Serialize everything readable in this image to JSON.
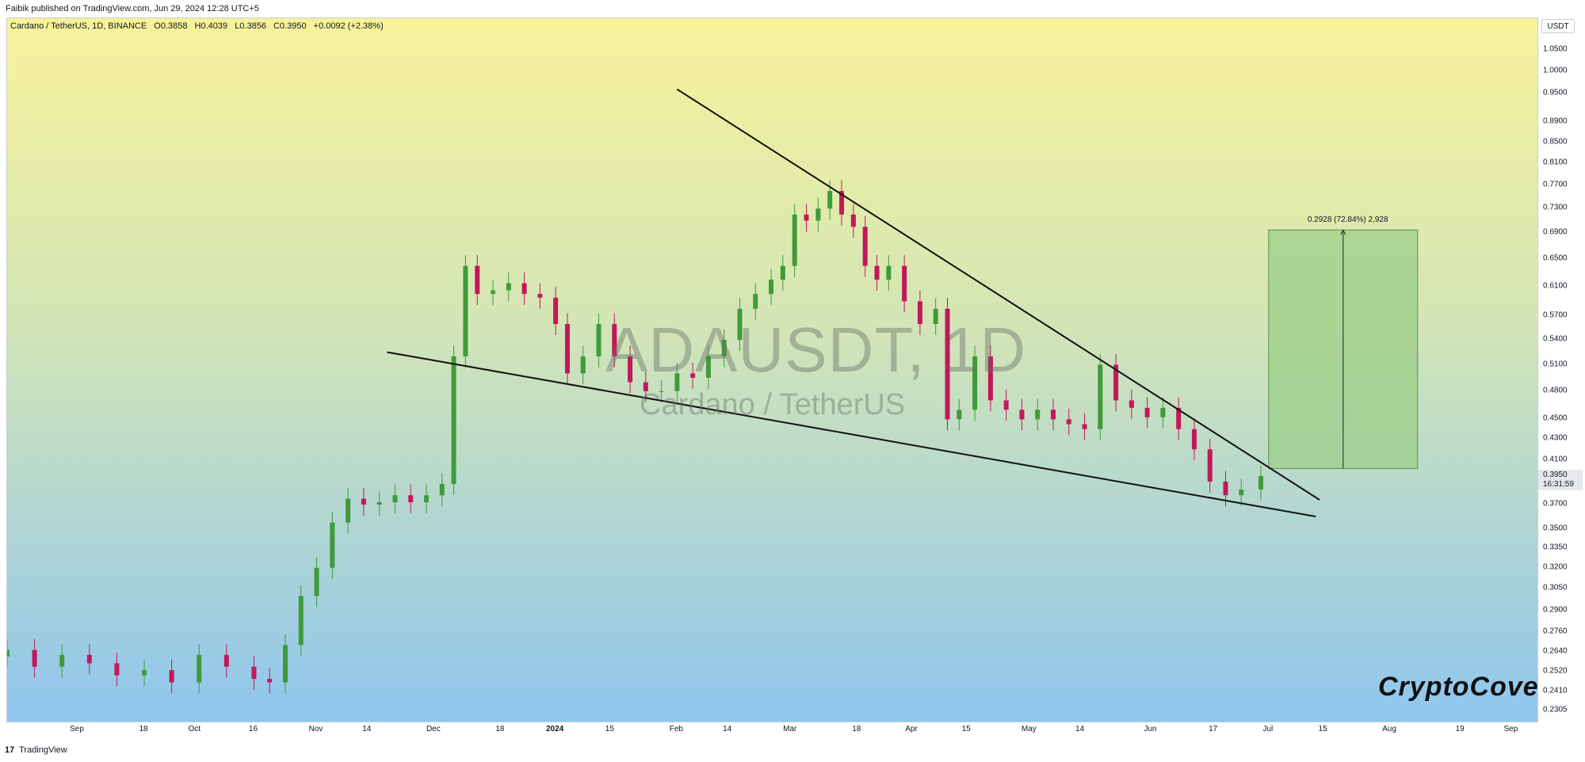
{
  "header": {
    "publisher_line": "Faibik published on TradingView.com, Jun 29, 2024 12:28 UTC+5"
  },
  "legend": {
    "symbol": "Cardano / TetherUS, 1D, BINANCE",
    "open": "O0.3858",
    "high": "H0.4039",
    "low": "L0.3856",
    "close": "C0.3950",
    "change": "+0.0092 (+2.38%)"
  },
  "watermark": {
    "title": "ADAUSDT, 1D",
    "subtitle": "Cardano / TetherUS"
  },
  "brand": "CryptoCove",
  "footer": {
    "logo": "17",
    "text": "TradingView"
  },
  "price_axis": {
    "currency": "USDT",
    "last_price": "0.3950",
    "countdown": "16:31:59",
    "tick_labels": [
      "1.0500",
      "1.0000",
      "0.9500",
      "0.8900",
      "0.8500",
      "0.8100",
      "0.7700",
      "0.7300",
      "0.6900",
      "0.6500",
      "0.6100",
      "0.5700",
      "0.5400",
      "0.5100",
      "0.4800",
      "0.4500",
      "0.4300",
      "0.4100",
      "0.3700",
      "0.3500",
      "0.3350",
      "0.3200",
      "0.3050",
      "0.2900",
      "0.2760",
      "0.2640",
      "0.2520",
      "0.2410",
      "0.2305"
    ]
  },
  "time_axis": {
    "labels": [
      {
        "text": "Sep",
        "date": "2023-09-01"
      },
      {
        "text": "18",
        "date": "2023-09-18"
      },
      {
        "text": "Oct",
        "date": "2023-10-01"
      },
      {
        "text": "16",
        "date": "2023-10-16"
      },
      {
        "text": "Nov",
        "date": "2023-11-01"
      },
      {
        "text": "14",
        "date": "2023-11-14"
      },
      {
        "text": "Dec",
        "date": "2023-12-01"
      },
      {
        "text": "18",
        "date": "2023-12-18"
      },
      {
        "text": "2024",
        "date": "2024-01-01",
        "bold": true
      },
      {
        "text": "15",
        "date": "2024-01-15"
      },
      {
        "text": "Feb",
        "date": "2024-02-01"
      },
      {
        "text": "14",
        "date": "2024-02-14"
      },
      {
        "text": "Mar",
        "date": "2024-03-01"
      },
      {
        "text": "18",
        "date": "2024-03-18"
      },
      {
        "text": "Apr",
        "date": "2024-04-01"
      },
      {
        "text": "15",
        "date": "2024-04-15"
      },
      {
        "text": "May",
        "date": "2024-05-01"
      },
      {
        "text": "14",
        "date": "2024-05-14"
      },
      {
        "text": "Jun",
        "date": "2024-06-01"
      },
      {
        "text": "17",
        "date": "2024-06-17"
      },
      {
        "text": "Jul",
        "date": "2024-07-01"
      },
      {
        "text": "15",
        "date": "2024-07-15"
      },
      {
        "text": "Aug",
        "date": "2024-08-01"
      },
      {
        "text": "19",
        "date": "2024-08-19"
      },
      {
        "text": "Sep",
        "date": "2024-09-01"
      }
    ]
  },
  "colors": {
    "bg_top": "#f7f29a",
    "bg_bottom": "#8fc6ee",
    "candle_up": "#3f9b3a",
    "candle_down": "#c2185b",
    "trendline": "#111111",
    "target_fill": "#9ccf8a"
  },
  "chart_data": {
    "type": "candlestick",
    "symbol": "ADAUSDT",
    "interval": "1D",
    "exchange": "BINANCE",
    "scale": "log",
    "ylim": [
      0.224,
      1.13
    ],
    "xlim": [
      "2023-08-14",
      "2024-09-08"
    ],
    "grid": false,
    "series": [
      {
        "name": "",
        "x": [
          "2023-08-14",
          "2023-08-21",
          "2023-08-28",
          "2023-09-04",
          "2023-09-11",
          "2023-09-18",
          "2023-09-25",
          "2023-10-02",
          "2023-10-09",
          "2023-10-16",
          "2023-10-20",
          "2023-10-24",
          "2023-10-28",
          "2023-11-01",
          "2023-11-05",
          "2023-11-09",
          "2023-11-13",
          "2023-11-17",
          "2023-11-21",
          "2023-11-25",
          "2023-11-29",
          "2023-12-03",
          "2023-12-06",
          "2023-12-09",
          "2023-12-12",
          "2023-12-16",
          "2023-12-20",
          "2023-12-24",
          "2023-12-28",
          "2024-01-01",
          "2024-01-04",
          "2024-01-08",
          "2024-01-12",
          "2024-01-16",
          "2024-01-20",
          "2024-01-24",
          "2024-01-28",
          "2024-02-01",
          "2024-02-05",
          "2024-02-09",
          "2024-02-13",
          "2024-02-17",
          "2024-02-21",
          "2024-02-25",
          "2024-02-28",
          "2024-03-02",
          "2024-03-05",
          "2024-03-08",
          "2024-03-11",
          "2024-03-14",
          "2024-03-17",
          "2024-03-20",
          "2024-03-23",
          "2024-03-26",
          "2024-03-30",
          "2024-04-03",
          "2024-04-07",
          "2024-04-10",
          "2024-04-13",
          "2024-04-17",
          "2024-04-21",
          "2024-04-25",
          "2024-04-29",
          "2024-05-03",
          "2024-05-07",
          "2024-05-11",
          "2024-05-15",
          "2024-05-19",
          "2024-05-23",
          "2024-05-27",
          "2024-05-31",
          "2024-06-04",
          "2024-06-08",
          "2024-06-12",
          "2024-06-16",
          "2024-06-20",
          "2024-06-24",
          "2024-06-29"
        ],
        "close": [
          0.265,
          0.255,
          0.262,
          0.257,
          0.25,
          0.253,
          0.246,
          0.262,
          0.255,
          0.248,
          0.246,
          0.268,
          0.3,
          0.32,
          0.355,
          0.375,
          0.37,
          0.372,
          0.378,
          0.372,
          0.378,
          0.388,
          0.52,
          0.64,
          0.6,
          0.605,
          0.615,
          0.6,
          0.595,
          0.56,
          0.5,
          0.52,
          0.56,
          0.52,
          0.49,
          0.48,
          0.48,
          0.5,
          0.495,
          0.52,
          0.54,
          0.58,
          0.6,
          0.62,
          0.64,
          0.72,
          0.71,
          0.73,
          0.76,
          0.72,
          0.7,
          0.64,
          0.62,
          0.64,
          0.59,
          0.56,
          0.58,
          0.45,
          0.46,
          0.52,
          0.47,
          0.46,
          0.45,
          0.46,
          0.45,
          0.445,
          0.44,
          0.51,
          0.47,
          0.462,
          0.452,
          0.462,
          0.44,
          0.42,
          0.39,
          0.378,
          0.383,
          0.395
        ]
      }
    ],
    "trendlines": [
      {
        "name": "upper",
        "from": {
          "date": "2024-02-01",
          "price": 0.96
        },
        "to": {
          "date": "2024-07-14",
          "price": 0.374
        }
      },
      {
        "name": "lower",
        "from": {
          "date": "2023-11-19",
          "price": 0.525
        },
        "to": {
          "date": "2024-07-13",
          "price": 0.36
        }
      }
    ],
    "projection": {
      "label": "0.2928 (72.84%) 2,928",
      "from_date": "2024-07-01",
      "to_date": "2024-08-08",
      "base_price": 0.402,
      "target_price": 0.695,
      "arrow_date": "2024-07-20"
    }
  }
}
